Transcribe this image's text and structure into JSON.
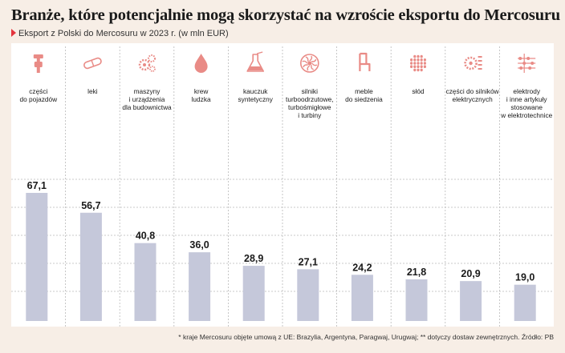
{
  "title": "Branże, które potencjalnie mogą skorzystać na wzroście eksportu do Mercosuru",
  "subtitle": "Eksport z Polski do Mercosuru w 2023 r. (w mln EUR)",
  "footnote": "* kraje Mercosuru objęte umową z UE: Brazylia, Argentyna, Paragwaj, Urugwaj; ** dotyczy dostaw zewnętrznych. Źródło: PB",
  "colors": {
    "bar": "#c5c8da",
    "icon": "#e98b86",
    "accent": "#e4343d",
    "background": "#f7eee6"
  },
  "chart_data": {
    "type": "bar",
    "title": "Branże, które potencjalnie mogą skorzystać na wzroście eksportu do Mercosuru",
    "subtitle": "Eksport z Polski do Mercosuru w 2023 r. (w mln EUR)",
    "ylim": [
      0,
      80
    ],
    "grid": true,
    "categories": [
      {
        "label": [
          "części",
          "do pojazdów"
        ],
        "icon": "spray-gun-icon"
      },
      {
        "label": [
          "leki"
        ],
        "icon": "pill-capsule-icon"
      },
      {
        "label": [
          "maszyny",
          "i urządzenia",
          "dla budownictwa"
        ],
        "icon": "gears-icon"
      },
      {
        "label": [
          "krew",
          "ludzka"
        ],
        "icon": "blood-drop-icon"
      },
      {
        "label": [
          "kauczuk",
          "syntetyczny"
        ],
        "icon": "flask-icon"
      },
      {
        "label": [
          "silniki",
          "turboodrzutowe,",
          "turbośmigłowe",
          "i turbiny"
        ],
        "icon": "turbine-icon"
      },
      {
        "label": [
          "meble",
          "do siedzenia"
        ],
        "icon": "chair-icon"
      },
      {
        "label": [
          "słód"
        ],
        "icon": "malt-grains-icon"
      },
      {
        "label": [
          "części do silników",
          "elektrycznych"
        ],
        "icon": "electric-motor-parts-icon"
      },
      {
        "label": [
          "elektrody",
          "i inne artykuły",
          "stosowane",
          "w elektrotechnice"
        ],
        "icon": "circuit-icon"
      }
    ],
    "values": [
      67.1,
      56.7,
      40.8,
      36.0,
      28.9,
      27.1,
      24.2,
      21.8,
      20.9,
      19.0
    ],
    "value_labels": [
      "67,1",
      "56,7",
      "40,8",
      "36,0",
      "28,9",
      "27,1",
      "24,2",
      "21,8",
      "20,9",
      "19,0"
    ]
  }
}
